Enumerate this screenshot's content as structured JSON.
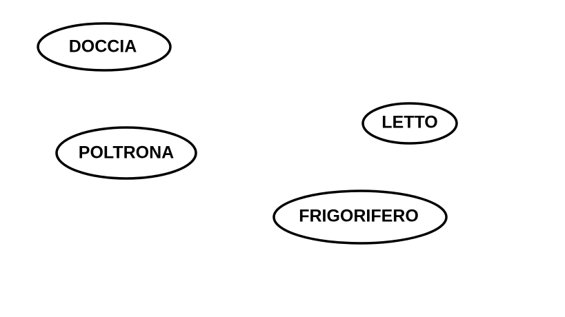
{
  "items": [
    {
      "label": "DOCCIA"
    },
    {
      "label": "POLTRONA"
    },
    {
      "label": "LETTO"
    },
    {
      "label": "FRIGORIFERO"
    }
  ]
}
